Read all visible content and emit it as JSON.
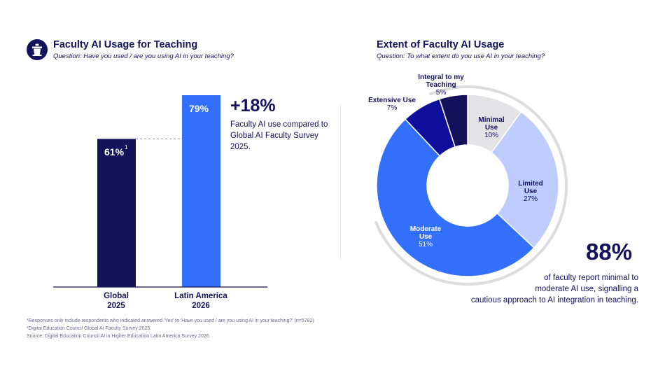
{
  "colors": {
    "navy": "#14125c",
    "global_bar": "#15125c",
    "latam_bar": "#3270fb",
    "minimal": "#e3e3e6",
    "limited": "#bfccff",
    "moderate": "#3270fb",
    "extensive": "#0f0f9e",
    "integral": "#15125c",
    "ring": "#dcdce0",
    "axis": "#14125c",
    "dash": "#9a9aa6"
  },
  "icon": "podium-icon",
  "left": {
    "title": "Faculty AI Usage for Teaching",
    "subtitle": "Question: Have you used / are you using AI in your teaching?",
    "stat": "+18%",
    "stat_desc": "Faculty AI use compared to Global AI Faculty Survey 2025."
  },
  "right": {
    "title": "Extent of Faculty AI Usage",
    "subtitle": "Question: To what extent do you use AI in your teaching?",
    "stat": "88%",
    "stat_desc_1": "of faculty report minimal to",
    "stat_desc_2": "moderate AI use, signalling a",
    "stat_desc_3": "cautious approach to AI integration in teaching."
  },
  "footnotes": {
    "line1": "*Responses only include respondents who indicated answered 'Yes' to 'Have you used / are you using AI in your teaching?' (n=5782)",
    "line2": "¹Digital Education Council Global AI Faculty Survey 2025.",
    "line3": "Source: Digital Education Council AI in Higher Education Latin America Survey 2026."
  },
  "chart_data": [
    {
      "type": "bar",
      "title": "Faculty AI Usage for Teaching",
      "categories": [
        {
          "line1": "Global",
          "line2": "2025"
        },
        {
          "line1": "Latin America",
          "line2": "2026"
        }
      ],
      "values": [
        61,
        79
      ],
      "value_labels": [
        "61%",
        "79%"
      ],
      "value_footnote": "1",
      "ylim": [
        0,
        100
      ],
      "grid": false
    },
    {
      "type": "pie",
      "title": "Extent of Faculty AI Usage",
      "slices": [
        {
          "label_1": "Minimal",
          "label_2": "Use",
          "value": 10,
          "value_label": "10%"
        },
        {
          "label_1": "Limited",
          "label_2": "Use",
          "value": 27,
          "value_label": "27%"
        },
        {
          "label_1": "Moderate",
          "label_2": "Use",
          "value": 51,
          "value_label": "51%"
        },
        {
          "label_1": "Extensive Use",
          "label_2": "",
          "value": 7,
          "value_label": "7%"
        },
        {
          "label_1": "Integral to my",
          "label_2": "Teaching",
          "value": 5,
          "value_label": "5%"
        }
      ]
    }
  ]
}
